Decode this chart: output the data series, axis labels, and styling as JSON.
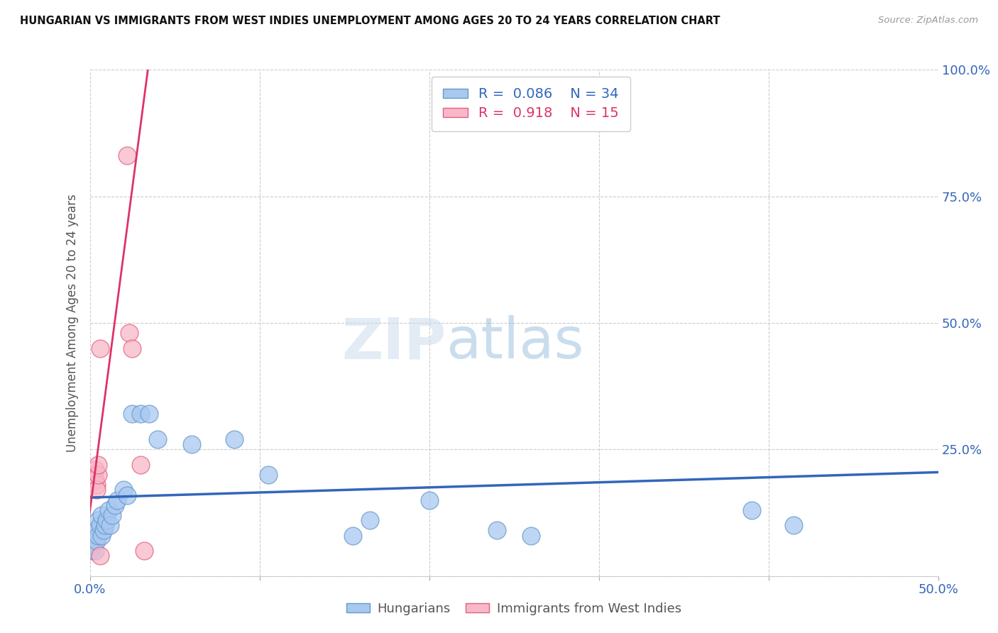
{
  "title": "HUNGARIAN VS IMMIGRANTS FROM WEST INDIES UNEMPLOYMENT AMONG AGES 20 TO 24 YEARS CORRELATION CHART",
  "source": "Source: ZipAtlas.com",
  "ylabel": "Unemployment Among Ages 20 to 24 years",
  "xlim": [
    0.0,
    0.5
  ],
  "ylim": [
    0.0,
    1.0
  ],
  "xticks": [
    0.0,
    0.1,
    0.2,
    0.3,
    0.4,
    0.5
  ],
  "xticklabels": [
    "0.0%",
    "",
    "",
    "",
    "",
    "50.0%"
  ],
  "yticks": [
    0.0,
    0.25,
    0.5,
    0.75,
    1.0
  ],
  "yticklabels": [
    "",
    "25.0%",
    "50.0%",
    "75.0%",
    "100.0%"
  ],
  "blue_fill": "#a8c8f0",
  "blue_edge": "#6699cc",
  "pink_fill": "#f8b8c8",
  "pink_edge": "#e06080",
  "blue_line": "#3366bb",
  "pink_line": "#dd3366",
  "legend_R_blue": "0.086",
  "legend_N_blue": "34",
  "legend_R_pink": "0.918",
  "legend_N_pink": "15",
  "blue_points": [
    [
      0.001,
      0.05
    ],
    [
      0.002,
      0.06
    ],
    [
      0.003,
      0.05
    ],
    [
      0.003,
      0.09
    ],
    [
      0.004,
      0.07
    ],
    [
      0.005,
      0.08
    ],
    [
      0.005,
      0.11
    ],
    [
      0.006,
      0.1
    ],
    [
      0.007,
      0.08
    ],
    [
      0.007,
      0.12
    ],
    [
      0.008,
      0.09
    ],
    [
      0.009,
      0.1
    ],
    [
      0.01,
      0.11
    ],
    [
      0.011,
      0.13
    ],
    [
      0.012,
      0.1
    ],
    [
      0.013,
      0.12
    ],
    [
      0.015,
      0.14
    ],
    [
      0.016,
      0.15
    ],
    [
      0.02,
      0.17
    ],
    [
      0.022,
      0.16
    ],
    [
      0.025,
      0.32
    ],
    [
      0.03,
      0.32
    ],
    [
      0.035,
      0.32
    ],
    [
      0.04,
      0.27
    ],
    [
      0.06,
      0.26
    ],
    [
      0.085,
      0.27
    ],
    [
      0.105,
      0.2
    ],
    [
      0.155,
      0.08
    ],
    [
      0.165,
      0.11
    ],
    [
      0.2,
      0.15
    ],
    [
      0.24,
      0.09
    ],
    [
      0.26,
      0.08
    ],
    [
      0.39,
      0.13
    ],
    [
      0.415,
      0.1
    ]
  ],
  "pink_points": [
    [
      0.001,
      0.2
    ],
    [
      0.002,
      0.2
    ],
    [
      0.003,
      0.21
    ],
    [
      0.003,
      0.19
    ],
    [
      0.004,
      0.18
    ],
    [
      0.004,
      0.17
    ],
    [
      0.005,
      0.2
    ],
    [
      0.005,
      0.22
    ],
    [
      0.006,
      0.45
    ],
    [
      0.006,
      0.04
    ],
    [
      0.022,
      0.83
    ],
    [
      0.023,
      0.48
    ],
    [
      0.025,
      0.45
    ],
    [
      0.03,
      0.22
    ],
    [
      0.032,
      0.05
    ]
  ],
  "blue_trend_x": [
    0.0,
    0.5
  ],
  "blue_trend_y": [
    0.155,
    0.205
  ],
  "pink_trend_x": [
    -0.005,
    0.035
  ],
  "pink_trend_y": [
    0.0,
    1.02
  ]
}
